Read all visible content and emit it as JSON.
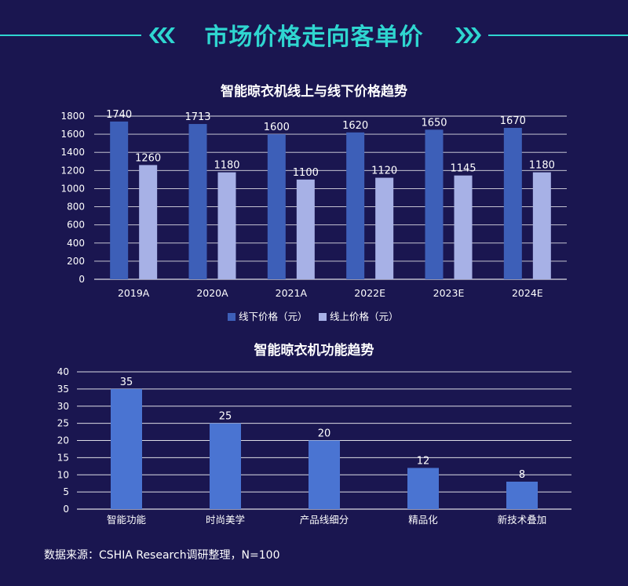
{
  "header": {
    "title": "市场价格走向客单价"
  },
  "colors": {
    "background": "#1a1650",
    "accent": "#2fd6d0",
    "offline": "#3d5fb8",
    "online": "#a7b1e6",
    "function": "#4a74d2"
  },
  "chart_data": [
    {
      "type": "bar",
      "title": "智能晾衣机线上与线下价格趋势",
      "categories": [
        "2019A",
        "2020A",
        "2021A",
        "2022E",
        "2023E",
        "2024E"
      ],
      "series": [
        {
          "name": "线下价格（元）",
          "values": [
            1740,
            1713,
            1600,
            1620,
            1650,
            1670
          ]
        },
        {
          "name": "线上价格（元）",
          "values": [
            1260,
            1180,
            1100,
            1120,
            1145,
            1180
          ]
        }
      ],
      "yticks": [
        "0",
        "200",
        "400",
        "600",
        "800",
        "1000",
        "1200",
        "1400",
        "1600",
        "1800"
      ],
      "ylim": [
        0,
        1800
      ],
      "grid": true,
      "legend": "bottom-center"
    },
    {
      "type": "bar",
      "title": "智能晾衣机功能趋势",
      "categories": [
        "智能功能",
        "时尚美学",
        "产品线细分",
        "精品化",
        "新技术叠加"
      ],
      "values": [
        35,
        25,
        20,
        12,
        8
      ],
      "yticks": [
        "0",
        "5",
        "10",
        "15",
        "20",
        "25",
        "30",
        "35",
        "40"
      ],
      "ylim": [
        0,
        40
      ],
      "grid": true,
      "legend": "none"
    }
  ],
  "footer": {
    "source": "数据来源：CSHIA Research调研整理，N=100"
  }
}
